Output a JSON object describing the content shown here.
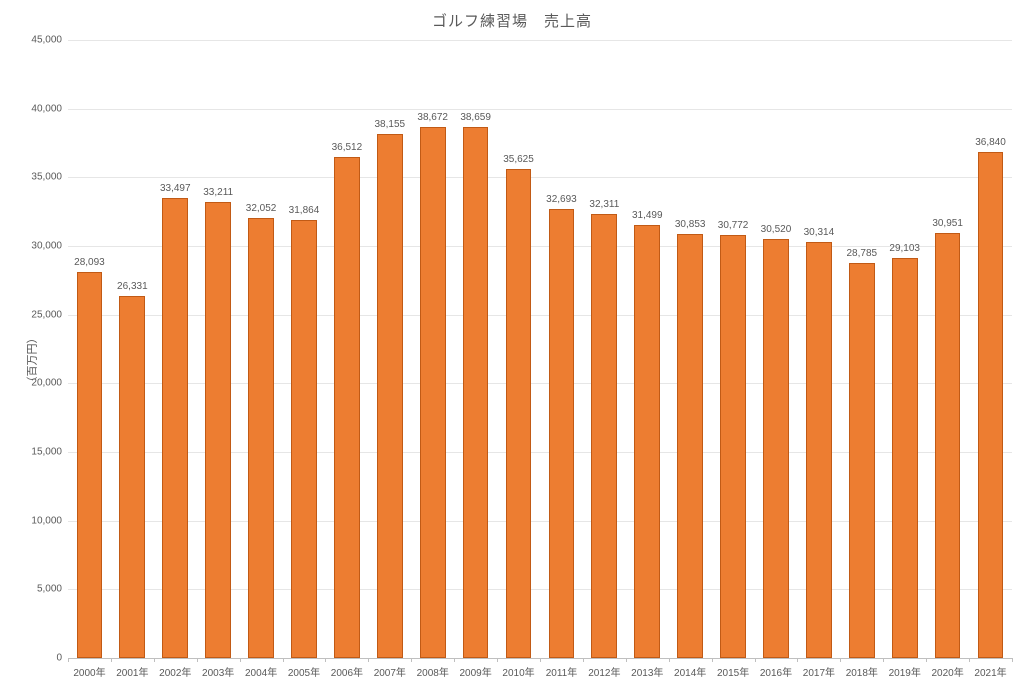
{
  "chart": {
    "type": "bar",
    "title": "ゴルフ練習場　売上高",
    "y_axis_label": "（百万円）",
    "title_color": "#595959",
    "title_fontsize": 15,
    "label_fontsize_axis": 11,
    "tick_fontsize": 10,
    "datalabel_fontsize": 10,
    "background_color": "#ffffff",
    "grid_color": "#e6e6e6",
    "axis_line_color": "#bfbfbf",
    "text_color": "#595959",
    "bar_fill": "#ed7d31",
    "bar_border": "#c15a15",
    "bar_width_ratio": 0.6,
    "ylim": [
      0,
      45000
    ],
    "y_ticks": [
      0,
      5000,
      10000,
      15000,
      20000,
      25000,
      30000,
      35000,
      40000,
      45000
    ],
    "y_tick_labels": [
      "0",
      "5,000",
      "10,000",
      "15,000",
      "20,000",
      "25,000",
      "30,000",
      "35,000",
      "40,000",
      "45,000"
    ],
    "categories": [
      "2000年",
      "2001年",
      "2002年",
      "2003年",
      "2004年",
      "2005年",
      "2006年",
      "2007年",
      "2008年",
      "2009年",
      "2010年",
      "2011年",
      "2012年",
      "2013年",
      "2014年",
      "2015年",
      "2016年",
      "2017年",
      "2018年",
      "2019年",
      "2020年",
      "2021年"
    ],
    "values": [
      28093,
      26331,
      33497,
      33211,
      32052,
      31864,
      36512,
      38155,
      38672,
      38659,
      35625,
      32693,
      32311,
      31499,
      30853,
      30772,
      30520,
      30314,
      28785,
      29103,
      30951,
      36840
    ],
    "value_labels": [
      "28,093",
      "26,331",
      "33,497",
      "33,211",
      "32,052",
      "31,864",
      "36,512",
      "38,155",
      "38,672",
      "38,659",
      "35,625",
      "32,693",
      "32,311",
      "31,499",
      "30,853",
      "30,772",
      "30,520",
      "30,314",
      "28,785",
      "29,103",
      "30,951",
      "36,840"
    ]
  }
}
